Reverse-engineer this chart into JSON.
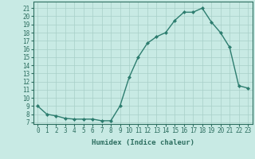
{
  "x": [
    0,
    1,
    2,
    3,
    4,
    5,
    6,
    7,
    8,
    9,
    10,
    11,
    12,
    13,
    14,
    15,
    16,
    17,
    18,
    19,
    20,
    21,
    22,
    23
  ],
  "y": [
    9,
    8,
    7.8,
    7.5,
    7.4,
    7.4,
    7.4,
    7.2,
    7.2,
    9,
    12.5,
    15,
    16.7,
    17.5,
    18,
    19.5,
    20.5,
    20.5,
    21,
    19.3,
    18,
    16.2,
    11.5,
    11.2
  ],
  "line_color": "#2d7d6f",
  "marker": "D",
  "marker_size": 2,
  "bg_color": "#c8eae4",
  "grid_color": "#a8cfc8",
  "xlabel": "Humidex (Indice chaleur)",
  "ylim": [
    6.8,
    21.8
  ],
  "xlim": [
    -0.5,
    23.5
  ],
  "yticks": [
    7,
    8,
    9,
    10,
    11,
    12,
    13,
    14,
    15,
    16,
    17,
    18,
    19,
    20,
    21
  ],
  "xticks": [
    0,
    1,
    2,
    3,
    4,
    5,
    6,
    7,
    8,
    9,
    10,
    11,
    12,
    13,
    14,
    15,
    16,
    17,
    18,
    19,
    20,
    21,
    22,
    23
  ],
  "tick_color": "#2d6e60",
  "label_fontsize": 6.5,
  "tick_fontsize": 5.5,
  "linewidth": 1.0
}
